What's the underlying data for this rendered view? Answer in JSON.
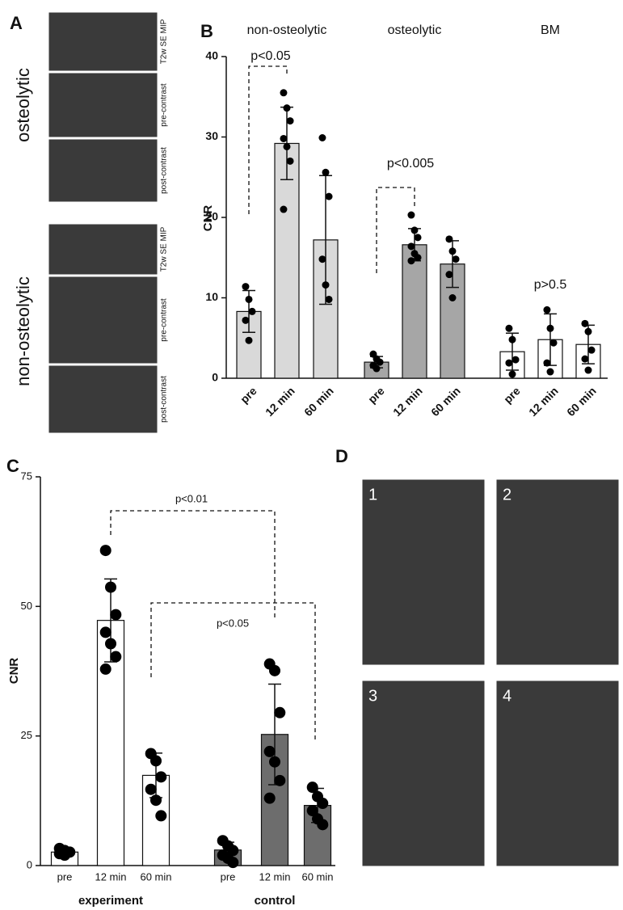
{
  "chart_data": [
    {
      "type": "bar",
      "panel": "B",
      "ylabel": "CNR",
      "ylim": [
        0,
        40
      ],
      "yticks": [
        0,
        10,
        20,
        30,
        40
      ],
      "groups": [
        {
          "name": "non-osteolytic",
          "color": "#d9d9d9",
          "categories": [
            "pre",
            "12 min",
            "60 min"
          ],
          "values": [
            8.3,
            29.2,
            17.2
          ],
          "errors": [
            2.6,
            4.5,
            8.0
          ],
          "points": [
            [
              11.4,
              9.8,
              8.3,
              7.2,
              4.7
            ],
            [
              35.5,
              33.6,
              32.0,
              29.8,
              28.8,
              27.0,
              21.0
            ],
            [
              29.9,
              25.6,
              22.6,
              14.8,
              11.6,
              9.8
            ]
          ]
        },
        {
          "name": "osteolytic",
          "color": "#a6a6a6",
          "categories": [
            "pre",
            "12 min",
            "60 min"
          ],
          "values": [
            2.0,
            16.6,
            14.2
          ],
          "errors": [
            0.7,
            2.0,
            2.9
          ],
          "points": [
            [
              3.0,
              2.4,
              2.0,
              1.6,
              1.2
            ],
            [
              20.3,
              18.4,
              17.5,
              16.4,
              15.5,
              15.0,
              14.6
            ],
            [
              17.3,
              15.8,
              14.8,
              12.9,
              10.0
            ]
          ]
        },
        {
          "name": "BM",
          "color": "#ffffff",
          "categories": [
            "pre",
            "12 min",
            "60 min"
          ],
          "values": [
            3.3,
            4.8,
            4.2
          ],
          "errors": [
            2.3,
            3.2,
            2.4
          ],
          "points": [
            [
              6.2,
              4.8,
              2.3,
              1.9,
              0.5
            ],
            [
              8.5,
              6.2,
              4.4,
              1.9,
              0.8
            ],
            [
              6.8,
              5.8,
              3.5,
              2.4,
              1.0
            ]
          ]
        }
      ],
      "annotations": [
        "p<0.05",
        "p<0.005",
        "p>0.5"
      ]
    },
    {
      "type": "bar",
      "panel": "C",
      "ylabel": "CNR",
      "ylim": [
        0,
        75
      ],
      "yticks": [
        0,
        25,
        50,
        75
      ],
      "groups": [
        {
          "name": "experiment",
          "color": "#ffffff",
          "categories": [
            "pre",
            "12 min",
            "60 min"
          ],
          "values": [
            2.6,
            47.3,
            17.4
          ],
          "errors": [
            0.5,
            8.0,
            4.3
          ],
          "points": [
            [
              3.3,
              2.9,
              2.6,
              2.3,
              2.0
            ],
            [
              60.8,
              53.7,
              48.4,
              45.0,
              42.8,
              40.3,
              37.9
            ],
            [
              21.6,
              20.2,
              17.1,
              14.7,
              12.6,
              9.6
            ]
          ]
        },
        {
          "name": "control",
          "color": "#6d6d6d",
          "categories": [
            "pre",
            "12 min",
            "60 min"
          ],
          "values": [
            3.0,
            25.3,
            11.6
          ],
          "errors": [
            1.5,
            9.7,
            3.3
          ],
          "points": [
            [
              4.8,
              3.8,
              2.9,
              2.0,
              1.4,
              0.6
            ],
            [
              38.9,
              37.6,
              29.5,
              22.0,
              20.0,
              16.4,
              13.0
            ],
            [
              15.1,
              13.3,
              12.0,
              10.6,
              9.0,
              7.9
            ]
          ]
        }
      ],
      "annotations": [
        "p<0.01",
        "p<0.05"
      ]
    }
  ],
  "image_panels": [
    {
      "panel": "A",
      "groups": [
        {
          "name": "osteolytic",
          "images": [
            "T2w SE MIP",
            "pre-contrast",
            "post-contrast"
          ]
        },
        {
          "name": "non-osteolytic",
          "images": [
            "T2w SE MIP",
            "pre-contrast",
            "post-contrast"
          ]
        }
      ]
    },
    {
      "panel": "D",
      "images": [
        "1",
        "2",
        "3",
        "4"
      ]
    }
  ]
}
